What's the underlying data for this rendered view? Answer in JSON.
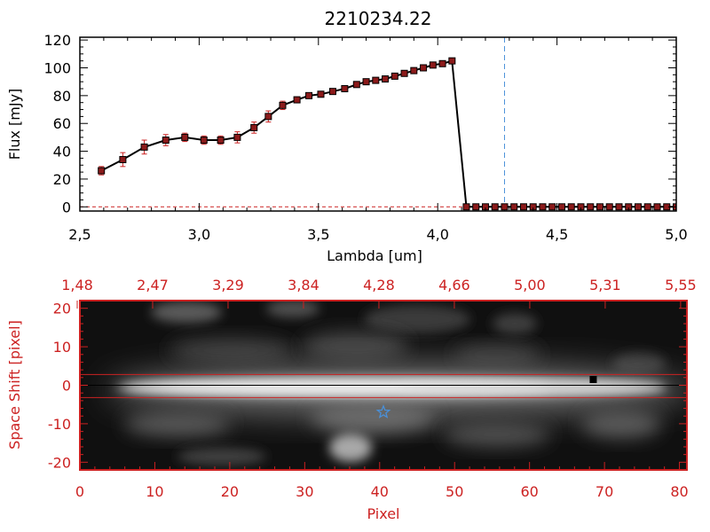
{
  "chart_data": [
    {
      "type": "line",
      "title": "2210234.22",
      "xlabel": "Lambda [um]",
      "ylabel": "Flux [mJy]",
      "xlim": [
        2.5,
        5.0
      ],
      "ylim": [
        -3,
        122
      ],
      "xticks": [
        2.5,
        3.0,
        3.5,
        4.0,
        4.5,
        5.0
      ],
      "xtick_labels": [
        "2,5",
        "3,0",
        "3,5",
        "4,0",
        "4,5",
        "5,0"
      ],
      "yticks": [
        0,
        20,
        40,
        60,
        80,
        100,
        120
      ],
      "ytick_labels": [
        "0",
        "20",
        "40",
        "60",
        "80",
        "100",
        "120"
      ],
      "series": [
        {
          "x": [
            2.59,
            2.68,
            2.77,
            2.86,
            2.94,
            3.02,
            3.09,
            3.16,
            3.23,
            3.29,
            3.35,
            3.41,
            3.46,
            3.51,
            3.56,
            3.61,
            3.66,
            3.7,
            3.74,
            3.78,
            3.82,
            3.86,
            3.9,
            3.94,
            3.98,
            4.02,
            4.06,
            4.12,
            4.16,
            4.2,
            4.24,
            4.28,
            4.32,
            4.36,
            4.4,
            4.44,
            4.48,
            4.52,
            4.56,
            4.6,
            4.64,
            4.68,
            4.72,
            4.76,
            4.8,
            4.84,
            4.88,
            4.92,
            4.96,
            5.0
          ],
          "y": [
            26,
            34,
            43,
            48,
            50,
            48,
            48,
            50,
            57,
            65,
            73,
            77,
            80,
            81,
            83,
            85,
            88,
            90,
            91,
            92,
            94,
            96,
            98,
            100,
            102,
            103,
            105,
            0,
            0,
            0,
            0,
            0,
            0,
            0,
            0,
            0,
            0,
            0,
            0,
            0,
            0,
            0,
            0,
            0,
            0,
            0,
            0,
            0,
            0,
            0
          ],
          "yerr": [
            3,
            5,
            5,
            4,
            3,
            3,
            3,
            4,
            4,
            4,
            3,
            2,
            2,
            2,
            2,
            2,
            2,
            2,
            2,
            2,
            2,
            2,
            2,
            2,
            2,
            2,
            2,
            0,
            0,
            0,
            0,
            0,
            0,
            0,
            0,
            0,
            0,
            0,
            0,
            0,
            0,
            0,
            0,
            0,
            0,
            0,
            0,
            0,
            0,
            0
          ],
          "line_color": "#000000",
          "marker_color": "#8b1a1a",
          "error_color": "#cc2222"
        }
      ],
      "vline": {
        "x": 4.28,
        "color": "#4a90d9",
        "style": "dashed"
      },
      "hline": {
        "y": 0,
        "color": "#cc2222",
        "style": "dashed"
      }
    },
    {
      "type": "heatmap",
      "xlabel": "Pixel",
      "ylabel": "Space Shift [pixel]",
      "xlim": [
        0,
        81
      ],
      "ylim": [
        -22,
        22
      ],
      "xticks": [
        0,
        10,
        20,
        30,
        40,
        50,
        60,
        70,
        80
      ],
      "xtick_labels": [
        "0",
        "10",
        "20",
        "30",
        "40",
        "50",
        "60",
        "70",
        "80"
      ],
      "yticks": [
        -20,
        -10,
        0,
        10,
        20
      ],
      "ytick_labels": [
        "-20",
        "-10",
        "0",
        "10",
        "20"
      ],
      "top_axis_labels": [
        "1,48",
        "2,47",
        "3,29",
        "3,84",
        "4,28",
        "4,66",
        "5,00",
        "5,31",
        "5,55"
      ],
      "colormap": "gray",
      "hlines_red": [
        2.8,
        -3.2
      ],
      "hline_black": 0,
      "star_marker": {
        "x": 40.5,
        "y": -7,
        "color": "#4a90d9"
      },
      "square_marker": {
        "x": 68.5,
        "y": 1.5,
        "color": "#000000"
      },
      "axis_color": "#cc2222"
    }
  ]
}
